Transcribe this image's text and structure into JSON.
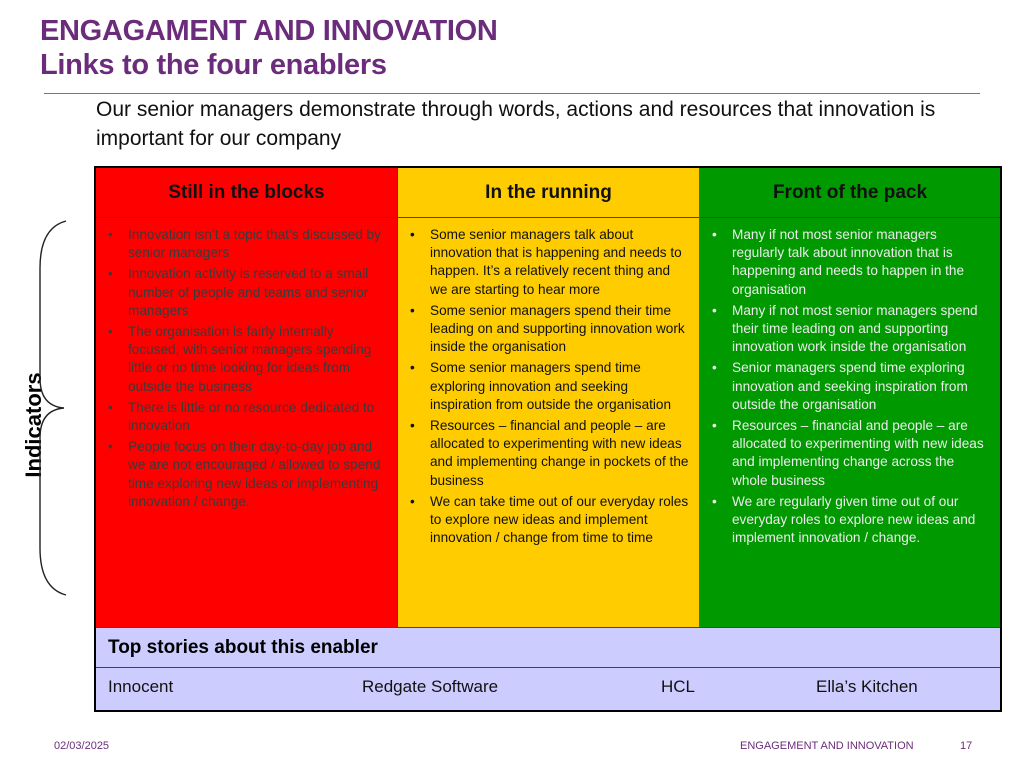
{
  "slide": {
    "title_line1": "ENGAGAMENT AND INNOVATION",
    "title_line2": "Links to the four enablers",
    "lead": "Our senior managers demonstrate through words, actions and resources that innovation is important for our company",
    "side_label": "Indicators"
  },
  "columns": [
    {
      "heading": "Still in the blocks",
      "color": "#ff0000",
      "items": [
        "Innovation isn’t a topic that’s discussed by senior managers",
        "Innovation activity is reserved to a small number of people and teams and senior managers",
        "The organisation is fairly internally focused, with senior managers spending little or no time looking for ideas from outside the business",
        "There is little or no resource dedicated to innovation",
        "People focus on their day-to-day job and we are not encouraged / allowed to spend time exploring new ideas or implementing innovation / change."
      ]
    },
    {
      "heading": "In the running",
      "color": "#ffcc00",
      "items": [
        "Some senior managers talk about innovation that is happening and needs to happen. It’s a relatively recent thing and we are starting to hear more",
        "Some senior managers spend their time leading on and supporting innovation work inside the organisation",
        "Some senior managers spend time exploring innovation and seeking inspiration from outside the organisation",
        "Resources – financial and people – are allocated to experimenting with new ideas and implementing change in pockets of the business",
        "We can take time out of our everyday roles to explore new ideas and implement innovation / change from time to time"
      ]
    },
    {
      "heading": "Front of the pack",
      "color": "#009900",
      "items": [
        "Many if not most senior managers regularly talk about  innovation that is happening and needs to happen in the organisation",
        "Many if not most senior managers spend their time leading on and supporting innovation work inside the organisation",
        "Senior managers spend time exploring innovation and seeking inspiration from outside the organisation",
        "Resources – financial and people – are allocated to experimenting with new ideas and implementing change across the whole business",
        "We are regularly  given time out of our everyday roles to explore new ideas and implement innovation / change."
      ]
    }
  ],
  "stories": {
    "heading": "Top stories about this enabler",
    "items": [
      "Innocent",
      "Redgate Software",
      "HCL",
      "Ella’s Kitchen"
    ]
  },
  "footer": {
    "date": "02/03/2025",
    "title": "ENGAGEMENT AND INNOVATION",
    "page": "17"
  }
}
